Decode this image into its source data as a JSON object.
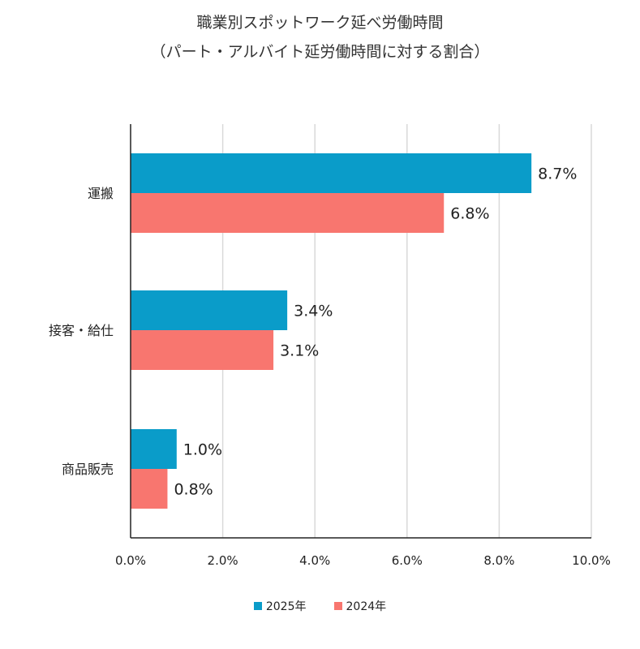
{
  "chart_data": {
    "type": "bar",
    "orientation": "horizontal",
    "title": "職業別スポットワーク延べ労働時間",
    "subtitle": "（パート・アルバイト延労働時間に対する割合）",
    "categories": [
      "運搬",
      "接客・給仕",
      "商品販売"
    ],
    "series": [
      {
        "name": "2025年",
        "values": [
          8.7,
          3.4,
          1.0
        ],
        "labels": [
          "8.7%",
          "3.4%",
          "1.0%"
        ],
        "color": "#0a9cc9"
      },
      {
        "name": "2024年",
        "values": [
          6.8,
          3.1,
          0.8
        ],
        "labels": [
          "6.8%",
          "3.1%",
          "0.8%"
        ],
        "color": "#f8766f"
      }
    ],
    "xlim": [
      0,
      10
    ],
    "xticks": [
      0,
      2,
      4,
      6,
      8,
      10
    ],
    "xtick_labels": [
      "0.0%",
      "2.0%",
      "4.0%",
      "6.0%",
      "8.0%",
      "10.0%"
    ],
    "grid": true,
    "legend": "bottom",
    "xlabel": "",
    "ylabel": ""
  }
}
